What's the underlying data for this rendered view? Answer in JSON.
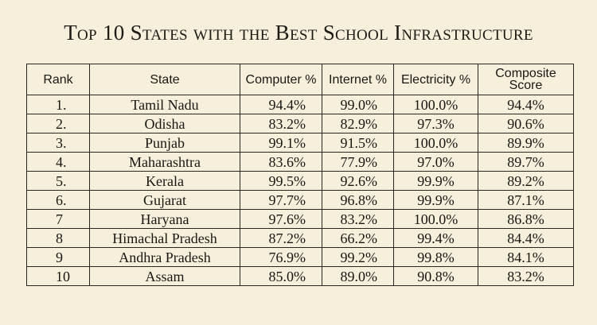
{
  "title": "Top 10 States with the Best School Infrastructure",
  "table": {
    "headers": {
      "rank": "Rank",
      "state": "State",
      "computer": "Computer %",
      "internet": "Internet %",
      "electricity": "Electricity %",
      "score": "Composite Score"
    },
    "rows": [
      {
        "rank": "1.",
        "state": "Tamil Nadu",
        "computer": "94.4%",
        "internet": "99.0%",
        "electricity": "100.0%",
        "score": "94.4%"
      },
      {
        "rank": "2.",
        "state": "Odisha",
        "computer": "83.2%",
        "internet": "82.9%",
        "electricity": "97.3%",
        "score": "90.6%"
      },
      {
        "rank": "3.",
        "state": "Punjab",
        "computer": "99.1%",
        "internet": "91.5%",
        "electricity": "100.0%",
        "score": "89.9%"
      },
      {
        "rank": "4.",
        "state": "Maharashtra",
        "computer": "83.6%",
        "internet": "77.9%",
        "electricity": "97.0%",
        "score": "89.7%"
      },
      {
        "rank": "5.",
        "state": "Kerala",
        "computer": "99.5%",
        "internet": "92.6%",
        "electricity": "99.9%",
        "score": "89.2%"
      },
      {
        "rank": "6.",
        "state": "Gujarat",
        "computer": "97.7%",
        "internet": "96.8%",
        "electricity": "99.9%",
        "score": "87.1%"
      },
      {
        "rank": "7",
        "state": "Haryana",
        "computer": "97.6%",
        "internet": "83.2%",
        "electricity": "100.0%",
        "score": "86.8%"
      },
      {
        "rank": "8",
        "state": "Himachal Pradesh",
        "computer": "87.2%",
        "internet": "66.2%",
        "electricity": "99.4%",
        "score": "84.4%"
      },
      {
        "rank": "9",
        "state": "Andhra Pradesh",
        "computer": "76.9%",
        "internet": "99.2%",
        "electricity": "99.8%",
        "score": "84.1%"
      },
      {
        "rank": "10",
        "state": "Assam",
        "computer": "85.0%",
        "internet": "89.0%",
        "electricity": "90.8%",
        "score": "83.2%"
      }
    ]
  }
}
